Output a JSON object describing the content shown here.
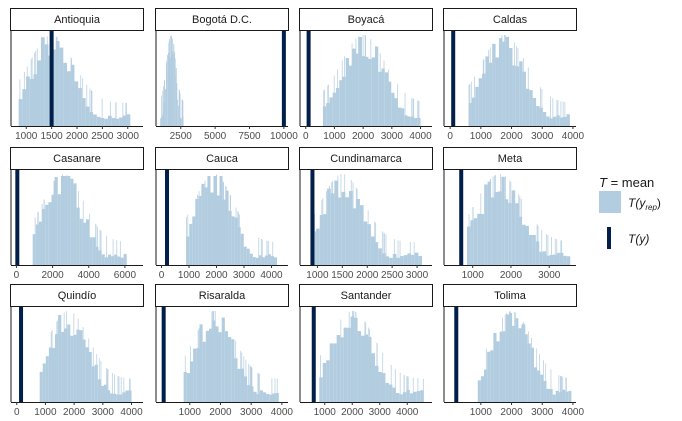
{
  "chart_data": {
    "type": "histogram-facets",
    "statistic_label": "T = mean",
    "legend": {
      "title_italic": "T",
      "title_rest": " = mean",
      "rep_label": "T(y",
      "rep_sub": "rep",
      "rep_close": ")",
      "obs_label": "T(y)",
      "position": "right"
    },
    "colors": {
      "rep_fill": "#b3cde0",
      "obs_line": "#011f4b",
      "strip_border": "#1a1a1a"
    },
    "panels": [
      {
        "label": "Antioquia",
        "xlim": [
          700,
          3300
        ],
        "ticks": [
          1000,
          1500,
          2000,
          2500,
          3000
        ],
        "tick_labels": [
          "1000",
          "1500",
          "2000",
          "2500",
          "3000"
        ],
        "observed": 1500,
        "rep_center": 1500,
        "rep_sd": 430,
        "rep_range": [
          850,
          3050
        ]
      },
      {
        "label": "Bogotá D.C.",
        "xlim": [
          700,
          10300
        ],
        "ticks": [
          2500,
          5000,
          7500,
          10000
        ],
        "tick_labels": [
          "2500",
          "5000",
          "7500",
          "10000"
        ],
        "observed": 10000,
        "rep_center": 1800,
        "rep_sd": 330,
        "rep_range": [
          1000,
          2700
        ]
      },
      {
        "label": "Boyacá",
        "xlim": [
          -200,
          4400
        ],
        "ticks": [
          0,
          1000,
          2000,
          3000,
          4000
        ],
        "tick_labels": [
          "0",
          "1000",
          "2000",
          "3000",
          "4000"
        ],
        "observed": 100,
        "rep_center": 2000,
        "rep_sd": 750,
        "rep_range": [
          600,
          4000
        ]
      },
      {
        "label": "Caldas",
        "xlim": [
          -200,
          4100
        ],
        "ticks": [
          0,
          1000,
          2000,
          3000,
          4000
        ],
        "tick_labels": [
          "0",
          "1000",
          "2000",
          "3000",
          "4000"
        ],
        "observed": 100,
        "rep_center": 1750,
        "rep_sd": 700,
        "rep_range": [
          600,
          3900
        ]
      },
      {
        "label": "Casanare",
        "xlim": [
          -300,
          7000
        ],
        "ticks": [
          0,
          2000,
          4000,
          6000
        ],
        "tick_labels": [
          "0",
          "2000",
          "4000",
          "6000"
        ],
        "observed": 50,
        "rep_center": 2600,
        "rep_sd": 1100,
        "rep_range": [
          900,
          6100
        ]
      },
      {
        "label": "Cauca",
        "xlim": [
          -200,
          4600
        ],
        "ticks": [
          0,
          1000,
          2000,
          3000,
          4000
        ],
        "tick_labels": [
          "0",
          "1000",
          "2000",
          "3000",
          "4000"
        ],
        "observed": 200,
        "rep_center": 1900,
        "rep_sd": 700,
        "rep_range": [
          900,
          4200
        ]
      },
      {
        "label": "Cundinamarca",
        "xlim": [
          650,
          3300
        ],
        "ticks": [
          1000,
          1500,
          2000,
          2500,
          3000
        ],
        "tick_labels": [
          "1000",
          "1500",
          "2000",
          "2500",
          "3000"
        ],
        "observed": 900,
        "rep_center": 1500,
        "rep_sd": 420,
        "rep_range": [
          900,
          3100
        ]
      },
      {
        "label": "Meta",
        "xlim": [
          250,
          3700
        ],
        "ticks": [
          1000,
          2000,
          3000
        ],
        "tick_labels": [
          "1000",
          "2000",
          "3000"
        ],
        "observed": 700,
        "rep_center": 1700,
        "rep_sd": 600,
        "rep_range": [
          850,
          3550
        ]
      },
      {
        "label": "Quindío",
        "xlim": [
          -200,
          4400
        ],
        "ticks": [
          0,
          1000,
          2000,
          3000,
          4000
        ],
        "tick_labels": [
          "0",
          "1000",
          "2000",
          "3000",
          "4000"
        ],
        "observed": 150,
        "rep_center": 1800,
        "rep_sd": 700,
        "rep_range": [
          800,
          4000
        ]
      },
      {
        "label": "Risaralda",
        "xlim": [
          -100,
          4200
        ],
        "ticks": [
          1000,
          2000,
          3000,
          4000
        ],
        "tick_labels": [
          "1000",
          "2000",
          "3000",
          "4000"
        ],
        "observed": 150,
        "rep_center": 1800,
        "rep_sd": 650,
        "rep_range": [
          800,
          3900
        ]
      },
      {
        "label": "Santander",
        "xlim": [
          100,
          4900
        ],
        "ticks": [
          1000,
          2000,
          3000,
          4000
        ],
        "tick_labels": [
          "1000",
          "2000",
          "3000",
          "4000"
        ],
        "observed": 600,
        "rep_center": 2000,
        "rep_sd": 800,
        "rep_range": [
          800,
          4600
        ]
      },
      {
        "label": "Tolima",
        "xlim": [
          -200,
          4100
        ],
        "ticks": [
          1000,
          2000,
          3000,
          4000
        ],
        "tick_labels": [
          "1000",
          "2000",
          "3000",
          "4000"
        ],
        "observed": 200,
        "rep_center": 2000,
        "rep_sd": 650,
        "rep_range": [
          900,
          3950
        ]
      }
    ]
  }
}
